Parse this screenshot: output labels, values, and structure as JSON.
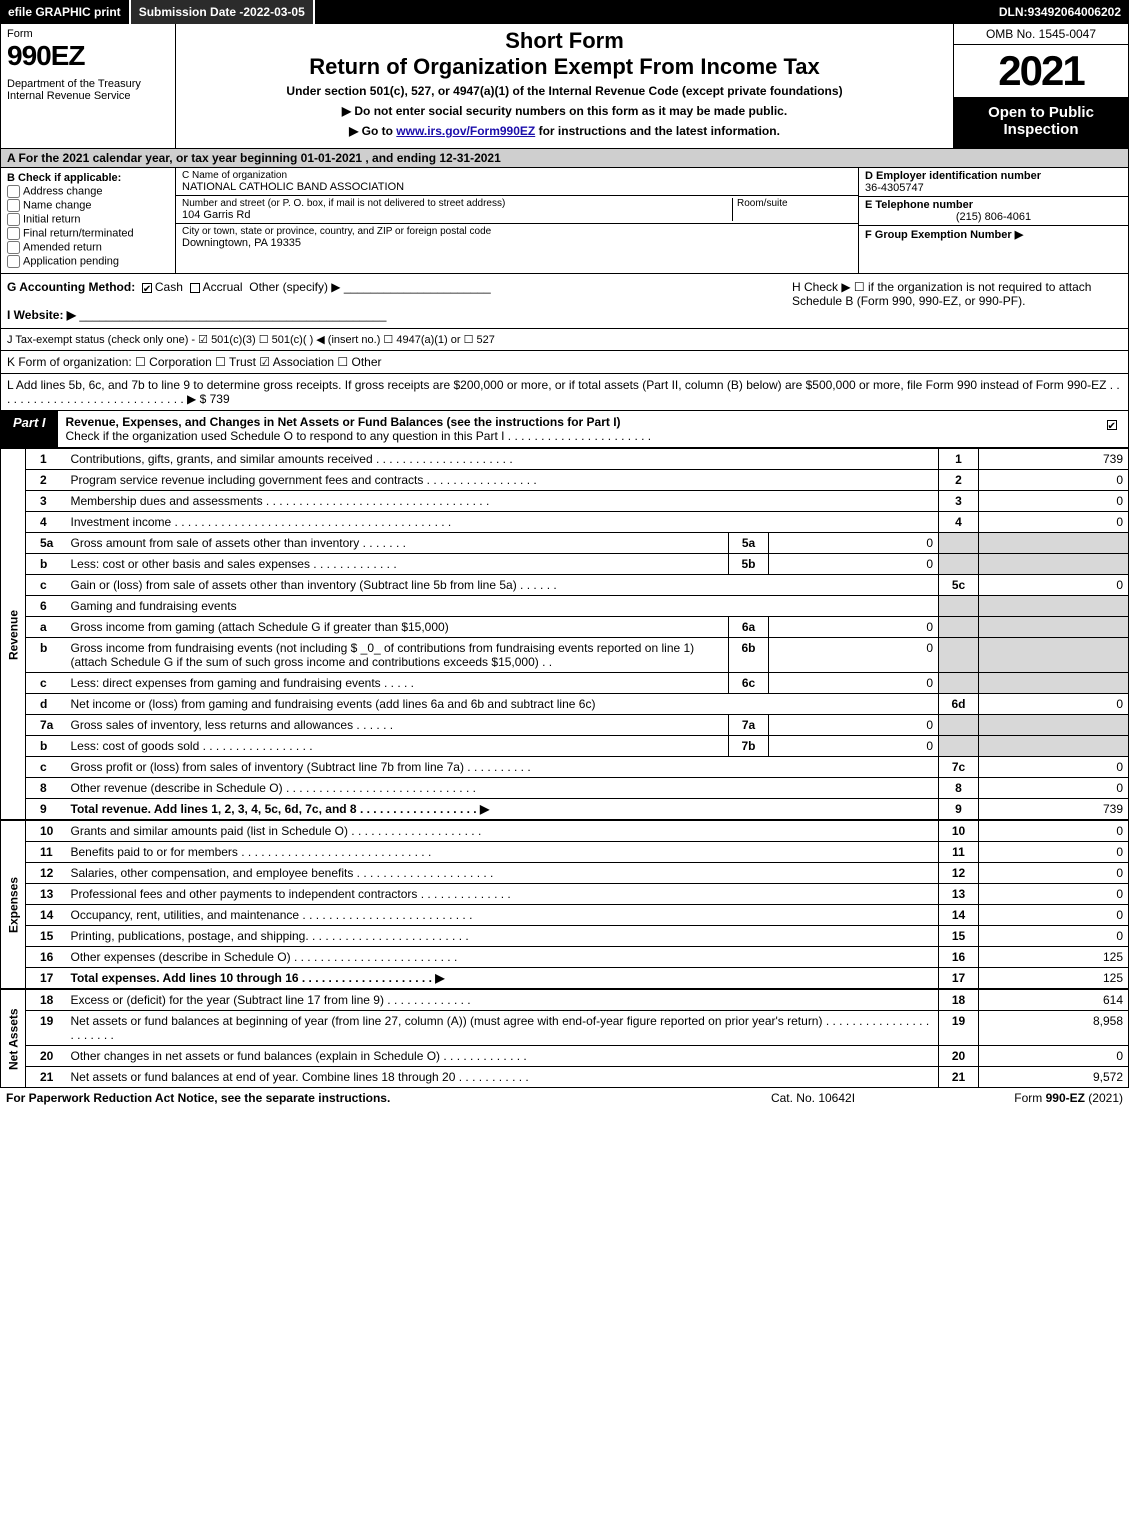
{
  "topbar": {
    "efile": "efile GRAPHIC print",
    "subdate_label": "Submission Date - ",
    "subdate": "2022-03-05",
    "dln_label": "DLN: ",
    "dln": "93492064006202"
  },
  "header": {
    "form_word": "Form",
    "form_num": "990EZ",
    "dept": "Department of the Treasury\nInternal Revenue Service",
    "short_form": "Short Form",
    "title": "Return of Organization Exempt From Income Tax",
    "under": "Under section 501(c), 527, or 4947(a)(1) of the Internal Revenue Code (except private foundations)",
    "ssn": "▶ Do not enter social security numbers on this form as it may be made public.",
    "goto_pre": "▶ Go to ",
    "goto_link": "www.irs.gov/Form990EZ",
    "goto_post": " for instructions and the latest information.",
    "omb": "OMB No. 1545-0047",
    "year": "2021",
    "open": "Open to Public Inspection"
  },
  "line_a": "A  For the 2021 calendar year, or tax year beginning 01-01-2021 , and ending 12-31-2021",
  "b": {
    "hdr": "B  Check if applicable:",
    "items": [
      "Address change",
      "Name change",
      "Initial return",
      "Final return/terminated",
      "Amended return",
      "Application pending"
    ]
  },
  "c": {
    "name_lbl": "C Name of organization",
    "name": "NATIONAL CATHOLIC BAND ASSOCIATION",
    "street_lbl": "Number and street (or P. O. box, if mail is not delivered to street address)",
    "room_lbl": "Room/suite",
    "street": "104 Garris Rd",
    "city_lbl": "City or town, state or province, country, and ZIP or foreign postal code",
    "city": "Downingtown, PA  19335"
  },
  "de": {
    "d_lbl": "D Employer identification number",
    "d_val": "36-4305747",
    "e_lbl": "E Telephone number",
    "e_val": "(215) 806-4061",
    "f_lbl": "F Group Exemption Number   ▶"
  },
  "g": {
    "lbl": "G Accounting Method:",
    "cash": "Cash",
    "accrual": "Accrual",
    "other": "Other (specify) ▶"
  },
  "h": {
    "text": "H  Check ▶  ☐  if the organization is not required to attach Schedule B (Form 990, 990-EZ, or 990-PF)."
  },
  "i": {
    "lbl": "I Website: ▶"
  },
  "j": {
    "text": "J Tax-exempt status (check only one) - ☑ 501(c)(3)  ☐ 501(c)(  ) ◀ (insert no.)  ☐ 4947(a)(1) or  ☐ 527"
  },
  "k": {
    "text": "K Form of organization:   ☐ Corporation   ☐ Trust   ☑ Association   ☐ Other"
  },
  "l": {
    "text": "L Add lines 5b, 6c, and 7b to line 9 to determine gross receipts. If gross receipts are $200,000 or more, or if total assets (Part II, column (B) below) are $500,000 or more, file Form 990 instead of Form 990-EZ  . . . . . . . . . . . . . . . . . . . . . . . . . . . . . ▶ $ ",
    "val": "739"
  },
  "part1": {
    "tab": "Part I",
    "title": "Revenue, Expenses, and Changes in Net Assets or Fund Balances (see the instructions for Part I)",
    "check_line": "Check if the organization used Schedule O to respond to any question in this Part I . . . . . . . . . . . . . . . . . . . . . ."
  },
  "sides": {
    "rev": "Revenue",
    "exp": "Expenses",
    "na": "Net Assets"
  },
  "lines": [
    {
      "n": "1",
      "d": "Contributions, gifts, grants, and similar amounts received  . . . . . . . . . . . . . . . . . . . . .",
      "rn": "1",
      "rv": "739"
    },
    {
      "n": "2",
      "d": "Program service revenue including government fees and contracts  . . . . . . . . . . . . . . . . .",
      "rn": "2",
      "rv": "0"
    },
    {
      "n": "3",
      "d": "Membership dues and assessments  . . . . . . . . . . . . . . . . . . . . . . . . . . . . . . . . . .",
      "rn": "3",
      "rv": "0"
    },
    {
      "n": "4",
      "d": "Investment income  . . . . . . . . . . . . . . . . . . . . . . . . . . . . . . . . . . . . . . . . . .",
      "rn": "4",
      "rv": "0"
    },
    {
      "n": "5a",
      "d": "Gross amount from sale of assets other than inventory  . . . . . . .",
      "sn": "5a",
      "sv": "0",
      "shade": true
    },
    {
      "n": "b",
      "d": "Less: cost or other basis and sales expenses  . . . . . . . . . . . . .",
      "sn": "5b",
      "sv": "0",
      "shade": true
    },
    {
      "n": "c",
      "d": "Gain or (loss) from sale of assets other than inventory (Subtract line 5b from line 5a)  . . . . . .",
      "rn": "5c",
      "rv": "0"
    },
    {
      "n": "6",
      "d": "Gaming and fundraising events",
      "shade": true
    },
    {
      "n": "a",
      "d": "Gross income from gaming (attach Schedule G if greater than $15,000)",
      "sn": "6a",
      "sv": "0",
      "shade": true
    },
    {
      "n": "b",
      "d": "Gross income from fundraising events (not including $ _0_ of contributions from fundraising events reported on line 1) (attach Schedule G if the sum of such gross income and contributions exceeds $15,000)   . .",
      "sn": "6b",
      "sv": "0",
      "shade": true
    },
    {
      "n": "c",
      "d": "Less: direct expenses from gaming and fundraising events   . . . . .",
      "sn": "6c",
      "sv": "0",
      "shade": true
    },
    {
      "n": "d",
      "d": "Net income or (loss) from gaming and fundraising events (add lines 6a and 6b and subtract line 6c)",
      "rn": "6d",
      "rv": "0"
    },
    {
      "n": "7a",
      "d": "Gross sales of inventory, less returns and allowances  . . . . . .",
      "sn": "7a",
      "sv": "0",
      "shade": true
    },
    {
      "n": "b",
      "d": "Less: cost of goods sold         . . . . . . . . . . . . . . . . .",
      "sn": "7b",
      "sv": "0",
      "shade": true
    },
    {
      "n": "c",
      "d": "Gross profit or (loss) from sales of inventory (Subtract line 7b from line 7a)  . . . . . . . . . .",
      "rn": "7c",
      "rv": "0"
    },
    {
      "n": "8",
      "d": "Other revenue (describe in Schedule O)  . . . . . . . . . . . . . . . . . . . . . . . . . . . . .",
      "rn": "8",
      "rv": "0"
    },
    {
      "n": "9",
      "d": "Total revenue. Add lines 1, 2, 3, 4, 5c, 6d, 7c, and 8   . . . . . . . . . . . . . . . . . .   ▶",
      "rn": "9",
      "rv": "739",
      "bold": true
    }
  ],
  "exp_lines": [
    {
      "n": "10",
      "d": "Grants and similar amounts paid (list in Schedule O)  . . . . . . . . . . . . . . . . . . . .",
      "rn": "10",
      "rv": "0"
    },
    {
      "n": "11",
      "d": "Benefits paid to or for members      . . . . . . . . . . . . . . . . . . . . . . . . . . . . .",
      "rn": "11",
      "rv": "0"
    },
    {
      "n": "12",
      "d": "Salaries, other compensation, and employee benefits . . . . . . . . . . . . . . . . . . . . .",
      "rn": "12",
      "rv": "0"
    },
    {
      "n": "13",
      "d": "Professional fees and other payments to independent contractors  . . . . . . . . . . . . . .",
      "rn": "13",
      "rv": "0"
    },
    {
      "n": "14",
      "d": "Occupancy, rent, utilities, and maintenance . . . . . . . . . . . . . . . . . . . . . . . . . .",
      "rn": "14",
      "rv": "0"
    },
    {
      "n": "15",
      "d": "Printing, publications, postage, and shipping.  . . . . . . . . . . . . . . . . . . . . . . . .",
      "rn": "15",
      "rv": "0"
    },
    {
      "n": "16",
      "d": "Other expenses (describe in Schedule O)     . . . . . . . . . . . . . . . . . . . . . . . . .",
      "rn": "16",
      "rv": "125"
    },
    {
      "n": "17",
      "d": "Total expenses. Add lines 10 through 16      . . . . . . . . . . . . . . . . . . . .   ▶",
      "rn": "17",
      "rv": "125",
      "bold": true
    }
  ],
  "na_lines": [
    {
      "n": "18",
      "d": "Excess or (deficit) for the year (Subtract line 17 from line 9)        . . . . . . . . . . . . .",
      "rn": "18",
      "rv": "614"
    },
    {
      "n": "19",
      "d": "Net assets or fund balances at beginning of year (from line 27, column (A)) (must agree with end-of-year figure reported on prior year's return) . . . . . . . . . . . . . . . . . . . . . . .",
      "rn": "19",
      "rv": "8,958"
    },
    {
      "n": "20",
      "d": "Other changes in net assets or fund balances (explain in Schedule O) . . . . . . . . . . . . .",
      "rn": "20",
      "rv": "0"
    },
    {
      "n": "21",
      "d": "Net assets or fund balances at end of year. Combine lines 18 through 20 . . . . . . . . . . .",
      "rn": "21",
      "rv": "9,572"
    }
  ],
  "footer": {
    "pra": "For Paperwork Reduction Act Notice, see the separate instructions.",
    "cat": "Cat. No. 10642I",
    "form": "Form 990-EZ (2021)"
  },
  "colors": {
    "topbar_bg": "#000000",
    "topbar_fg": "#ffffff",
    "shade_bg": "#cfcfcf",
    "cell_shade": "#d8d8d8",
    "link": "#1a0dab"
  }
}
